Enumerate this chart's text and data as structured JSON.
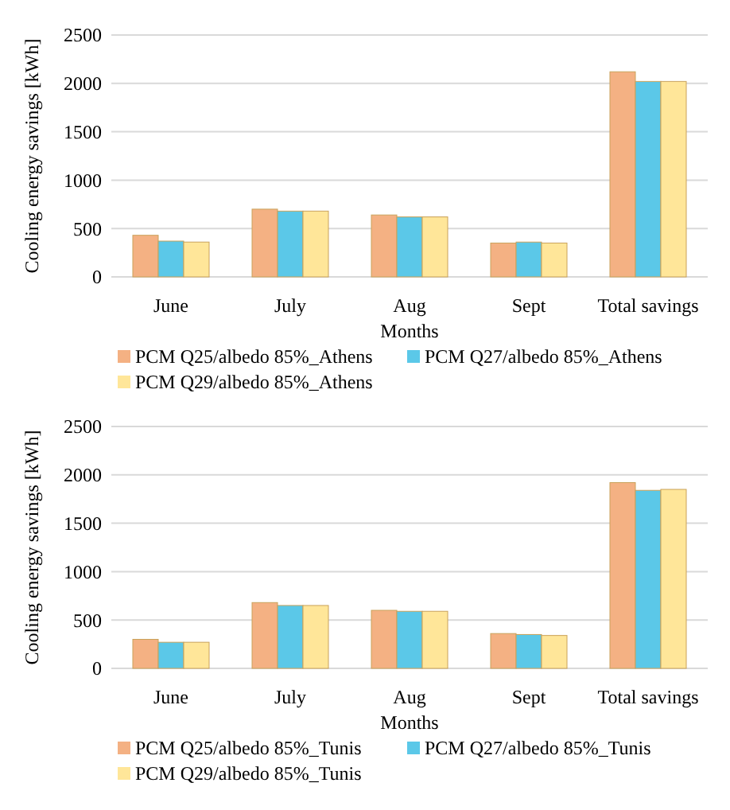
{
  "chart_data": [
    {
      "type": "bar",
      "xlabel": "Months",
      "ylabel": "Cooling energy savings [kWh]",
      "categories": [
        "June",
        "July",
        "Aug",
        "Sept",
        "Total savings"
      ],
      "ylim": [
        0,
        2500
      ],
      "yticks": [
        0,
        500,
        1000,
        1500,
        2000,
        2500
      ],
      "grid": "y",
      "legend": "bottom",
      "series": [
        {
          "name": "PCM Q25/albedo 85%_Athens",
          "color": "#f4b183",
          "values": [
            430,
            700,
            640,
            350,
            2120
          ]
        },
        {
          "name": "PCM Q27/albedo 85%_Athens",
          "color": "#5bc8e8",
          "values": [
            370,
            680,
            620,
            360,
            2020
          ]
        },
        {
          "name": "PCM Q29/albedo 85%_Athens",
          "color": "#ffe699",
          "values": [
            360,
            680,
            620,
            350,
            2020
          ]
        }
      ]
    },
    {
      "type": "bar",
      "xlabel": "Months",
      "ylabel": "Cooling energy savings [kWh]",
      "categories": [
        "June",
        "July",
        "Aug",
        "Sept",
        "Total savings"
      ],
      "ylim": [
        0,
        2500
      ],
      "yticks": [
        0,
        500,
        1000,
        1500,
        2000,
        2500
      ],
      "grid": "y",
      "legend": "bottom",
      "series": [
        {
          "name": "PCM Q25/albedo 85%_Tunis",
          "color": "#f4b183",
          "values": [
            300,
            680,
            600,
            360,
            1920
          ]
        },
        {
          "name": "PCM Q27/albedo 85%_Tunis",
          "color": "#5bc8e8",
          "values": [
            270,
            650,
            590,
            350,
            1840
          ]
        },
        {
          "name": "PCM Q29/albedo 85%_Tunis",
          "color": "#ffe699",
          "values": [
            270,
            650,
            590,
            340,
            1850
          ]
        }
      ]
    }
  ]
}
